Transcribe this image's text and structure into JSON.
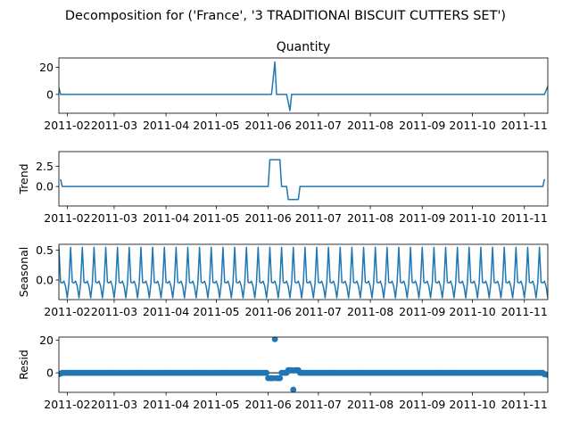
{
  "figure": {
    "suptitle": "Decomposition for ('France', '3 TRADITIONAl BISCUIT CUTTERS  SET')"
  },
  "chart_data": [
    {
      "type": "line",
      "title": "Quantity",
      "ylabel": "",
      "xlim": [
        "2011-01-27",
        "2011-11-15"
      ],
      "ylim": [
        -14,
        27
      ],
      "yticks": [
        0,
        20
      ],
      "ytick_labels": [
        "0",
        "20"
      ],
      "xtick_labels": [
        "2011-02",
        "2011-03",
        "2011-04",
        "2011-05",
        "2011-06",
        "2011-07",
        "2011-08",
        "2011-09",
        "2011-10",
        "2011-11"
      ],
      "color": "#1f77b4",
      "points": [
        [
          "2011-01-27",
          5
        ],
        [
          "2011-01-28",
          0
        ],
        [
          "2011-06-03",
          0
        ],
        [
          "2011-06-05",
          24
        ],
        [
          "2011-06-06",
          0
        ],
        [
          "2011-06-12",
          0
        ],
        [
          "2011-06-14",
          -12
        ],
        [
          "2011-06-15",
          0
        ],
        [
          "2011-11-13",
          0
        ],
        [
          "2011-11-15",
          6
        ]
      ]
    },
    {
      "type": "line",
      "title": "",
      "ylabel": "Trend",
      "xlim": [
        "2011-01-27",
        "2011-11-15"
      ],
      "ylim": [
        -2.4,
        4.3
      ],
      "yticks": [
        0,
        2.5
      ],
      "ytick_labels": [
        "0.0",
        "2.5"
      ],
      "xtick_labels": [
        "2011-02",
        "2011-03",
        "2011-04",
        "2011-05",
        "2011-06",
        "2011-07",
        "2011-08",
        "2011-09",
        "2011-10",
        "2011-11"
      ],
      "color": "#1f77b4",
      "points": [
        [
          "2011-01-28",
          0.9
        ],
        [
          "2011-01-29",
          0
        ],
        [
          "2011-06-01",
          0
        ],
        [
          "2011-06-02",
          3.3
        ],
        [
          "2011-06-08",
          3.3
        ],
        [
          "2011-06-09",
          0
        ],
        [
          "2011-06-12",
          0
        ],
        [
          "2011-06-13",
          -1.6
        ],
        [
          "2011-06-19",
          -1.6
        ],
        [
          "2011-06-20",
          0
        ],
        [
          "2011-11-12",
          0
        ],
        [
          "2011-11-13",
          0.9
        ]
      ]
    },
    {
      "type": "line",
      "title": "",
      "ylabel": "Seasonal",
      "xlim": [
        "2011-01-27",
        "2011-11-15"
      ],
      "ylim": [
        -0.33,
        0.6
      ],
      "yticks": [
        0,
        0.5
      ],
      "ytick_labels": [
        "0.0",
        "0.5"
      ],
      "xtick_labels": [
        "2011-02",
        "2011-03",
        "2011-04",
        "2011-05",
        "2011-06",
        "2011-07",
        "2011-08",
        "2011-09",
        "2011-10",
        "2011-11"
      ],
      "color": "#1f77b4",
      "period_days": 7,
      "start": "2011-01-27",
      "end": "2011-11-15",
      "pattern": [
        0.55,
        -0.04,
        -0.05,
        -0.02,
        -0.11,
        -0.3,
        -0.05
      ]
    },
    {
      "type": "scatter",
      "title": "",
      "ylabel": "Resid",
      "xlim": [
        "2011-01-27",
        "2011-11-15"
      ],
      "ylim": [
        -12,
        22
      ],
      "yticks": [
        0,
        20
      ],
      "ytick_labels": [
        "0",
        "20"
      ],
      "xtick_labels": [
        "2011-02",
        "2011-03",
        "2011-04",
        "2011-05",
        "2011-06",
        "2011-07",
        "2011-08",
        "2011-09",
        "2011-10",
        "2011-11"
      ],
      "color": "#1f77b4",
      "baseline": 0,
      "start": "2011-01-27",
      "end": "2011-11-15",
      "highlight": [
        [
          "2011-01-27",
          -0.8
        ],
        [
          "2011-01-28",
          -0.5
        ],
        [
          "2011-06-01",
          -3.3
        ],
        [
          "2011-06-02",
          -3.3
        ],
        [
          "2011-06-03",
          -3.3
        ],
        [
          "2011-06-04",
          -3.3
        ],
        [
          "2011-06-05",
          20.7
        ],
        [
          "2011-06-06",
          -3.3
        ],
        [
          "2011-06-07",
          -3.3
        ],
        [
          "2011-06-08",
          -3.3
        ],
        [
          "2011-06-13",
          1.6
        ],
        [
          "2011-06-14",
          1.6
        ],
        [
          "2011-06-15",
          1.6
        ],
        [
          "2011-06-16",
          -10.4
        ],
        [
          "2011-06-17",
          1.6
        ],
        [
          "2011-06-18",
          1.6
        ],
        [
          "2011-06-19",
          1.6
        ],
        [
          "2011-11-13",
          -0.9
        ],
        [
          "2011-11-14",
          -1.0
        ],
        [
          "2011-11-15",
          -1.2
        ]
      ]
    }
  ]
}
